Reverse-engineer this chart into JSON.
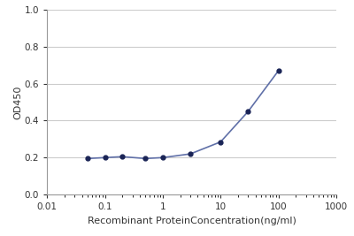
{
  "x_values": [
    0.05,
    0.1,
    0.2,
    0.5,
    1.0,
    3.0,
    10.0,
    30.0,
    100.0
  ],
  "y_values": [
    0.195,
    0.2,
    0.205,
    0.195,
    0.2,
    0.22,
    0.285,
    0.45,
    0.67
  ],
  "line_color": "#6070a8",
  "marker_color": "#1a2456",
  "marker_size": 3.5,
  "line_width": 1.2,
  "xlabel": "Recombinant ProteinConcentration(ng/ml)",
  "ylabel": "OD450",
  "xlim": [
    0.01,
    1000
  ],
  "ylim": [
    0,
    1.0
  ],
  "yticks": [
    0,
    0.2,
    0.4,
    0.6,
    0.8,
    1.0
  ],
  "xticks": [
    0.01,
    0.1,
    1,
    10,
    100,
    1000
  ],
  "xtick_labels": [
    "0.01",
    "0.1",
    "1",
    "10",
    "100",
    "1000"
  ],
  "background_color": "#ffffff",
  "plot_bg_color": "#ffffff",
  "grid_color": "#cccccc",
  "xlabel_fontsize": 8,
  "ylabel_fontsize": 8,
  "tick_fontsize": 7.5
}
